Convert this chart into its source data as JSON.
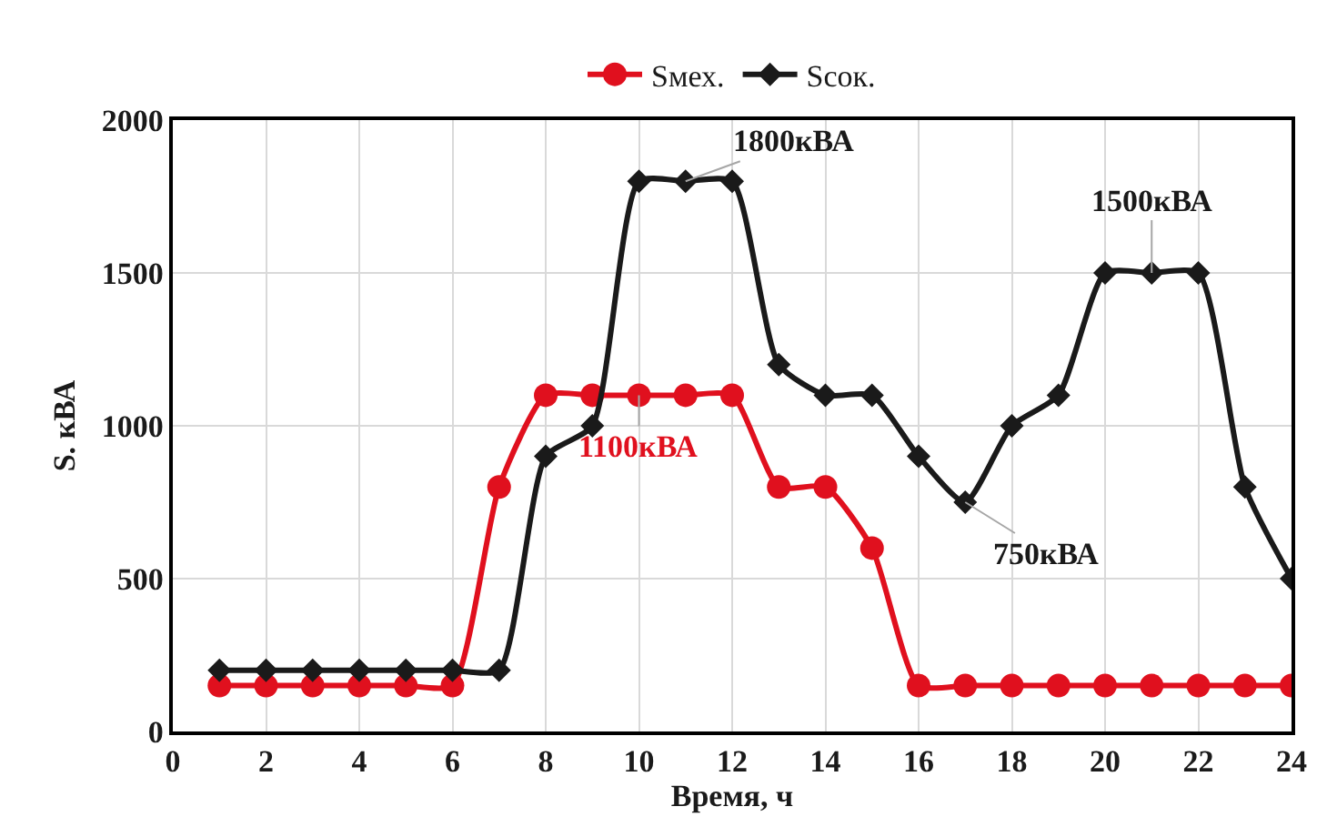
{
  "chart_data": {
    "type": "line",
    "xlabel": "Время, ч",
    "ylabel": "S. кВА",
    "x": [
      1,
      2,
      3,
      4,
      5,
      6,
      7,
      8,
      9,
      10,
      11,
      12,
      13,
      14,
      15,
      16,
      17,
      18,
      19,
      20,
      21,
      22,
      23,
      24
    ],
    "series": [
      {
        "name": "Sмех.",
        "color": "#e0101e",
        "marker": "circle",
        "values": [
          150,
          150,
          150,
          150,
          150,
          150,
          800,
          1100,
          1100,
          1100,
          1100,
          1100,
          800,
          800,
          600,
          150,
          150,
          150,
          150,
          150,
          150,
          150,
          150,
          150
        ]
      },
      {
        "name": "Sсок.",
        "color": "#1a1a1a",
        "marker": "diamond",
        "values": [
          200,
          200,
          200,
          200,
          200,
          200,
          200,
          900,
          1000,
          1800,
          1800,
          1800,
          1200,
          1100,
          1100,
          900,
          750,
          1000,
          1100,
          1500,
          1500,
          1500,
          800,
          500
        ]
      }
    ],
    "xlim": [
      0,
      24
    ],
    "xticks": [
      0,
      2,
      4,
      6,
      8,
      10,
      12,
      14,
      16,
      18,
      20,
      22,
      24
    ],
    "ylim": [
      0,
      2000
    ],
    "yticks": [
      0,
      500,
      1000,
      1500,
      2000
    ],
    "grid": true,
    "legend": "top",
    "line_style": "solid",
    "annotations": [
      {
        "text": "1800кВА",
        "x": 11,
        "y": 1800
      },
      {
        "text": "1100кВА",
        "x": 10,
        "y": 1100
      },
      {
        "text": "750кВА",
        "x": 17,
        "y": 750
      },
      {
        "text": "1500кВА",
        "x": 21,
        "y": 1500
      }
    ]
  }
}
